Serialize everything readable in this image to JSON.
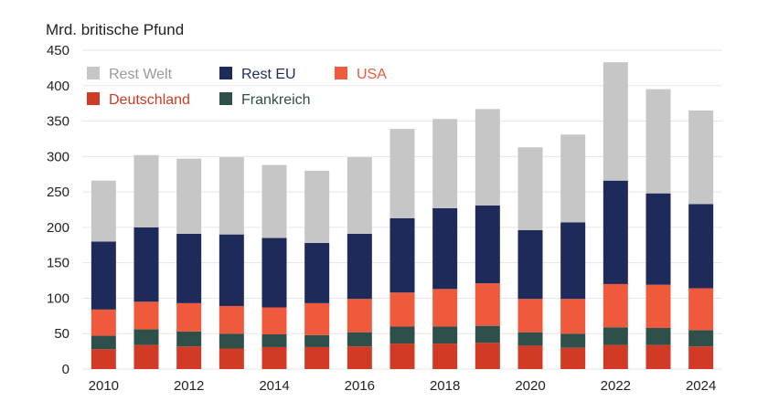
{
  "chart_data": {
    "type": "bar",
    "stacked": true,
    "ylabel": "Mrd. britische Pfund",
    "xlabel": "",
    "ylim": [
      0,
      450
    ],
    "yticks": [
      0,
      50,
      100,
      150,
      200,
      250,
      300,
      350,
      400,
      450
    ],
    "categories": [
      "2010",
      "2011",
      "2012",
      "2013",
      "2014",
      "2015",
      "2016",
      "2017",
      "2018",
      "2019",
      "2020",
      "2021",
      "2022",
      "2023",
      "2024"
    ],
    "xtick_labels": [
      "2010",
      "",
      "2012",
      "",
      "2014",
      "",
      "2016",
      "",
      "2018",
      "",
      "2020",
      "",
      "2022",
      "",
      "2024"
    ],
    "grid": true,
    "legend_position": "top-left",
    "series": [
      {
        "name": "Deutschland",
        "color": "#d13a24",
        "values": [
          28,
          34,
          32,
          29,
          31,
          31,
          32,
          36,
          36,
          37,
          33,
          30,
          34,
          34,
          32
        ]
      },
      {
        "name": "Frankreich",
        "color": "#2f4f4b",
        "values": [
          19,
          22,
          21,
          21,
          18,
          17,
          20,
          24,
          24,
          24,
          19,
          20,
          25,
          24,
          23
        ]
      },
      {
        "name": "USA",
        "color": "#ef5a3c",
        "values": [
          37,
          39,
          40,
          39,
          38,
          45,
          47,
          48,
          53,
          60,
          47,
          49,
          61,
          61,
          59
        ]
      },
      {
        "name": "Rest EU",
        "color": "#1e2a5a",
        "values": [
          96,
          105,
          98,
          101,
          98,
          85,
          92,
          105,
          114,
          110,
          97,
          108,
          146,
          129,
          119
        ]
      },
      {
        "name": "Rest Welt",
        "color": "#c6c6c6",
        "values": [
          86,
          102,
          106,
          109,
          103,
          102,
          108,
          126,
          126,
          136,
          117,
          124,
          167,
          147,
          132
        ]
      }
    ],
    "legend_rows": [
      [
        "Rest Welt",
        "Rest EU",
        "USA"
      ],
      [
        "Deutschland",
        "Frankreich"
      ]
    ]
  }
}
